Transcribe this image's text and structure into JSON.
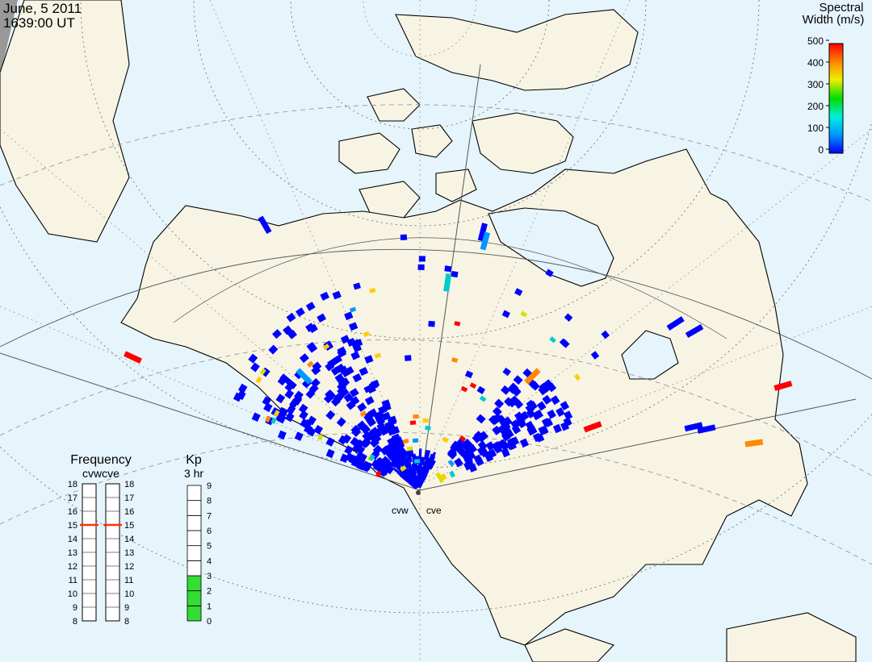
{
  "header": {
    "date": "June, 5 2011",
    "time": "1639:00 UT"
  },
  "colorbar": {
    "title_line1": "Spectral",
    "title_line2": "Width (m/s)",
    "ticks": [
      "500",
      "400",
      "300",
      "200",
      "100",
      "0"
    ],
    "stops": [
      "#0000ff",
      "#0099ff",
      "#00eedd",
      "#00dd00",
      "#eeee00",
      "#ff8800",
      "#ff0000"
    ]
  },
  "radars": {
    "west": "cvw",
    "east": "cve"
  },
  "frequency": {
    "title": "Frequency",
    "radar_labels": "cvwcve",
    "ticks": [
      "18",
      "17",
      "16",
      "15",
      "14",
      "13",
      "12",
      "11",
      "10",
      "9",
      "8"
    ],
    "cvw_value": 15,
    "cve_value": 15
  },
  "kp": {
    "title": "Kp",
    "subtitle": "3 hr",
    "ticks": [
      "9",
      "8",
      "7",
      "6",
      "5",
      "4",
      "3",
      "2",
      "1",
      "0"
    ],
    "value": 3
  },
  "colors": {
    "ocean": "#e6f4fc",
    "land": "#f7f4e4",
    "scatter_low": "#0000ff",
    "fill_kp": "#33dd33",
    "freq_marker": "#ff3300"
  }
}
